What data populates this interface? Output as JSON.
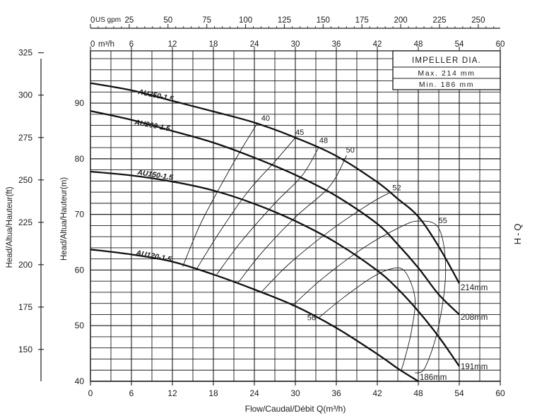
{
  "chart_data": {
    "type": "line",
    "title": "",
    "side_label": "H-Q",
    "x_bottom": {
      "label": "Flow/Caudal/Débit Q(m³/h)",
      "ticks": [
        0,
        6,
        12,
        18,
        24,
        30,
        36,
        42,
        48,
        54,
        60
      ],
      "range": [
        0,
        60
      ]
    },
    "x_top_m3h": {
      "unit": "m³/h",
      "ticks": [
        "0",
        "6",
        "12",
        "18",
        "24",
        "30",
        "36",
        "42",
        "48",
        "54",
        "60"
      ]
    },
    "x_top_gpm": {
      "unit": "US gpm",
      "ticks": [
        "0",
        "25",
        "50",
        "75",
        "100",
        "125",
        "150",
        "175",
        "200",
        "225",
        "250"
      ]
    },
    "y_left_ft": {
      "label": "Head/Altua/Hauteur(ft)",
      "ticks": [
        150,
        175,
        200,
        225,
        250,
        275,
        300,
        325
      ]
    },
    "y_right_m": {
      "label": "Head/Altua/Hauteur(m)",
      "ticks": [
        40,
        50,
        60,
        70,
        80,
        90
      ],
      "range": [
        40,
        99
      ]
    },
    "grid": true,
    "legend_box": {
      "title": "IMPELLER DIA.",
      "max": "Max. 214 mm",
      "min": "Min. 186 mm"
    },
    "series": [
      {
        "name": "AU250-1.5",
        "end_label": "214mm",
        "x": [
          0,
          6,
          12,
          18,
          24,
          30,
          36,
          42,
          45,
          48,
          51,
          54
        ],
        "y": [
          93.6,
          92.3,
          90.4,
          88.5,
          86.5,
          83.8,
          80.5,
          75.8,
          72.8,
          69.6,
          64.2,
          57.6
        ]
      },
      {
        "name": "AU200-1.5",
        "end_label": "208mm",
        "x": [
          0,
          6,
          12,
          18,
          24,
          30,
          36,
          42,
          45,
          48,
          51,
          54
        ],
        "y": [
          88.6,
          87.0,
          85.0,
          82.9,
          80.2,
          77.1,
          73.3,
          68.3,
          64.6,
          60.4,
          55.6,
          52.0
        ]
      },
      {
        "name": "AU150-1.5",
        "end_label": "191mm",
        "x": [
          0,
          6,
          12,
          18,
          24,
          30,
          36,
          42,
          45,
          48,
          51,
          54
        ],
        "y": [
          77.7,
          77.0,
          75.9,
          74.3,
          71.9,
          68.8,
          64.9,
          59.9,
          56.6,
          52.6,
          48.0,
          42.7
        ]
      },
      {
        "name": "AU120-1.5",
        "end_label": "186mm",
        "x": [
          0,
          6,
          12,
          18,
          24,
          30,
          36,
          42,
          45,
          48
        ],
        "y": [
          63.7,
          62.8,
          61.5,
          59.2,
          56.5,
          53.5,
          49.6,
          44.9,
          42.3,
          40.0
        ]
      }
    ],
    "efficiency_curves": [
      {
        "label": "40",
        "x": [
          13.5,
          16,
          19,
          22,
          24.5
        ],
        "y": [
          60.6,
          68,
          75,
          81.5,
          86.5
        ]
      },
      {
        "label": "45",
        "x": [
          15.5,
          19,
          23,
          27,
          30
        ],
        "y": [
          60.1,
          67,
          74,
          79.5,
          83.8
        ]
      },
      {
        "label": "48",
        "x": [
          18.5,
          22,
          27,
          31,
          33.5
        ],
        "y": [
          59.2,
          65,
          72,
          77,
          82.2
        ]
      },
      {
        "label": "50",
        "x": [
          21.5,
          25,
          30,
          35,
          37.5
        ],
        "y": [
          57.5,
          63,
          69.5,
          75,
          80.6
        ]
      },
      {
        "label": "52",
        "x": [
          25,
          29,
          35,
          41,
          44
        ],
        "y": [
          56,
          61,
          67,
          72,
          74
        ]
      },
      {
        "label": "55",
        "x": [
          29.5,
          34,
          40,
          45,
          48,
          51,
          52,
          51,
          49,
          47.5
        ],
        "y": [
          53.5,
          58.5,
          64,
          67.5,
          68.8,
          67.5,
          60,
          50,
          42.5,
          41.5
        ]
      },
      {
        "label": "56",
        "x": [
          33.5,
          37,
          41,
          44,
          46,
          47.5,
          47,
          46,
          45.5
        ],
        "y": [
          51.5,
          55,
          58.5,
          60.2,
          59.8,
          55,
          49,
          44,
          42
        ]
      }
    ]
  }
}
